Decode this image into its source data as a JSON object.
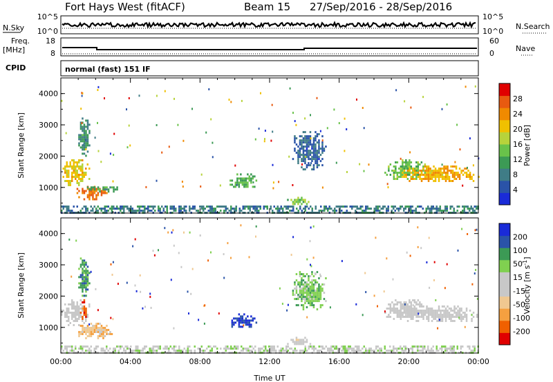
{
  "header": {
    "station": "Fort Hays West (fitACF)",
    "beam": "Beam 15",
    "dates": "27/Sep/2016 - 28/Sep/2016"
  },
  "side_panels": {
    "nsky_label": "N.Sky",
    "nsky_ticks": [
      "10^5",
      "10^0"
    ],
    "nsearch_label": "N.Search",
    "nsearch_ticks": [
      "10^5",
      "10^0"
    ],
    "freq_label_1": "Freq.",
    "freq_label_2": "[MHz]",
    "freq_ticks": [
      "18",
      "8"
    ],
    "nave_label": "Nave",
    "nave_ticks": [
      "60",
      "0"
    ],
    "cpid_label": "CPID",
    "cpid_value": "normal (fast) 151 IF"
  },
  "colors": {
    "power": [
      "#1a2bd8",
      "#2a53a8",
      "#3f7c86",
      "#3c9a55",
      "#69c24a",
      "#b7d33b",
      "#f0c000",
      "#f08a00",
      "#e85a10",
      "#e00000"
    ],
    "velocity": [
      "#e00000",
      "#f06000",
      "#f5a040",
      "#f0c890",
      "#c8c8c8",
      "#c8c8c8",
      "#80d050",
      "#3c9a55",
      "#2a53a8",
      "#1a2bd8"
    ],
    "ground_scatter": "#b0b0b0"
  },
  "chart_data": [
    {
      "type": "heatmap",
      "name": "power",
      "ylabel": "Slant Range [km]",
      "colorbar_label": "Power [dB]",
      "colorbar_ticks": [
        "4",
        "8",
        "12",
        "16",
        "20",
        "24",
        "28"
      ],
      "colorbar_range": [
        0,
        32
      ],
      "x_ticks": [
        "00:00",
        "04:00",
        "08:00",
        "12:00",
        "16:00",
        "20:00",
        "00:00"
      ],
      "x_range_hours": [
        0,
        24
      ],
      "y_ticks": [
        "1000",
        "2000",
        "3000",
        "4000"
      ],
      "y_range_km": [
        180,
        4500
      ],
      "regions": [
        {
          "t": [
            0.0,
            1.6
          ],
          "r": [
            1100,
            1900
          ],
          "v": 20
        },
        {
          "t": [
            0.9,
            2.7
          ],
          "r": [
            650,
            1050
          ],
          "v": 26
        },
        {
          "t": [
            1.5,
            3.3
          ],
          "r": [
            900,
            1100
          ],
          "v": 12
        },
        {
          "t": [
            1.0,
            1.6
          ],
          "r": [
            2000,
            3300
          ],
          "v": 10
        },
        {
          "t": [
            9.7,
            11.2
          ],
          "r": [
            1000,
            1450
          ],
          "v": 13
        },
        {
          "t": [
            13.0,
            14.3
          ],
          "r": [
            450,
            700
          ],
          "v": 15
        },
        {
          "t": [
            13.3,
            15.2
          ],
          "r": [
            1600,
            2800
          ],
          "v": 6
        },
        {
          "t": [
            18.6,
            21.0
          ],
          "r": [
            1300,
            1900
          ],
          "v": 14
        },
        {
          "t": [
            19.6,
            24.0
          ],
          "r": [
            1200,
            1700
          ],
          "v": 22
        },
        {
          "t": [
            0.0,
            24.0
          ],
          "r": [
            180,
            420
          ],
          "v": 8
        }
      ]
    },
    {
      "type": "heatmap",
      "name": "velocity",
      "ylabel": "Slant Range [km]",
      "colorbar_label": "Velocity [m s-1]",
      "colorbar_label_main": "Velocity [m s",
      "colorbar_label_sup": "-1",
      "colorbar_label_end": "]",
      "colorbar_ticks": [
        "-200",
        "-100",
        "-50",
        "-15",
        "15",
        "50",
        "100",
        "200"
      ],
      "colorbar_range": [
        -250,
        250
      ],
      "x_ticks": [
        "00:00",
        "04:00",
        "08:00",
        "12:00",
        "16:00",
        "20:00",
        "00:00"
      ],
      "xlabel": "Time UT",
      "x_range_hours": [
        0,
        24
      ],
      "y_ticks": [
        "1000",
        "2000",
        "3000",
        "4000"
      ],
      "y_range_km": [
        180,
        4500
      ],
      "regions": [
        {
          "t": [
            0.0,
            1.6
          ],
          "r": [
            1100,
            1900
          ],
          "v": 0
        },
        {
          "t": [
            1.1,
            1.5
          ],
          "r": [
            1300,
            1900
          ],
          "v": -180
        },
        {
          "t": [
            0.9,
            3.0
          ],
          "r": [
            650,
            1150
          ],
          "v": -80
        },
        {
          "t": [
            1.0,
            1.6
          ],
          "r": [
            2000,
            3300
          ],
          "v": 120
        },
        {
          "t": [
            9.7,
            11.2
          ],
          "r": [
            1000,
            1450
          ],
          "v": 200
        },
        {
          "t": [
            13.0,
            14.3
          ],
          "r": [
            450,
            700
          ],
          "v": -10
        },
        {
          "t": [
            13.3,
            15.2
          ],
          "r": [
            1600,
            2800
          ],
          "v": 80
        },
        {
          "t": [
            18.6,
            21.0
          ],
          "r": [
            1300,
            1900
          ],
          "v": 0
        },
        {
          "t": [
            19.6,
            24.0
          ],
          "r": [
            1200,
            1700
          ],
          "v": 0
        },
        {
          "t": [
            0.0,
            24.0
          ],
          "r": [
            180,
            420
          ],
          "v": 30
        }
      ]
    }
  ]
}
